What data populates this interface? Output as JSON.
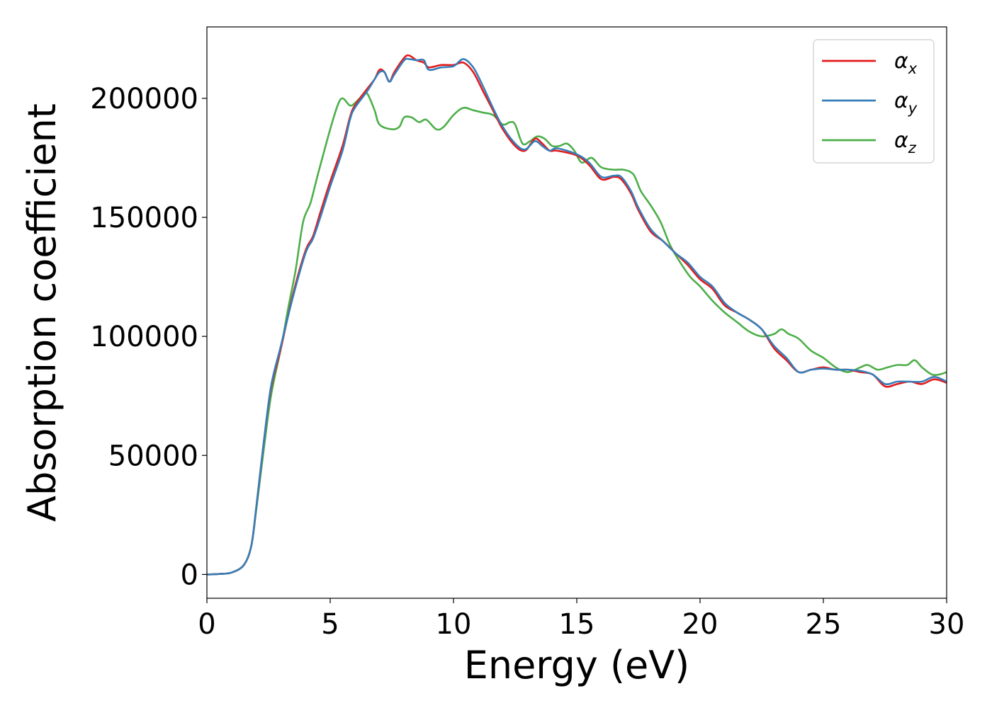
{
  "chart_data": {
    "type": "line",
    "title": "",
    "xlabel": "Energy (eV)",
    "ylabel": "Absorption coefficient",
    "xlim": [
      0,
      30
    ],
    "ylim": [
      -10000,
      230000
    ],
    "xticks": [
      0,
      5,
      10,
      15,
      20,
      25,
      30
    ],
    "yticks": [
      0,
      50000,
      100000,
      150000,
      200000
    ],
    "grid": false,
    "legend_position": "top-right",
    "series": [
      {
        "name": "αx",
        "legend_main": "α",
        "legend_sub": "x",
        "color": "#e41a1c",
        "points": [
          [
            0,
            0
          ],
          [
            0.5,
            200
          ],
          [
            1.0,
            800
          ],
          [
            1.5,
            4000
          ],
          [
            1.8,
            12000
          ],
          [
            2.0,
            28000
          ],
          [
            2.3,
            55000
          ],
          [
            2.6,
            78000
          ],
          [
            3.0,
            95000
          ],
          [
            3.5,
            118000
          ],
          [
            4.0,
            136000
          ],
          [
            4.3,
            142000
          ],
          [
            4.6,
            152000
          ],
          [
            5.0,
            165000
          ],
          [
            5.5,
            180000
          ],
          [
            5.8,
            192000
          ],
          [
            6.0,
            197000
          ],
          [
            6.5,
            204000
          ],
          [
            6.8,
            208000
          ],
          [
            7.0,
            212000
          ],
          [
            7.2,
            211000
          ],
          [
            7.4,
            207000
          ],
          [
            7.6,
            211000
          ],
          [
            8.0,
            217000
          ],
          [
            8.2,
            218000
          ],
          [
            8.5,
            216000
          ],
          [
            8.8,
            215000
          ],
          [
            9.0,
            213000
          ],
          [
            9.5,
            214000
          ],
          [
            10.0,
            214000
          ],
          [
            10.4,
            215000
          ],
          [
            10.8,
            211000
          ],
          [
            11.2,
            203000
          ],
          [
            11.6,
            195000
          ],
          [
            12.0,
            187000
          ],
          [
            12.5,
            180000
          ],
          [
            12.9,
            178000
          ],
          [
            13.3,
            183000
          ],
          [
            13.6,
            181000
          ],
          [
            13.9,
            178000
          ],
          [
            14.2,
            178000
          ],
          [
            15.0,
            176000
          ],
          [
            15.5,
            172000
          ],
          [
            16.0,
            166000
          ],
          [
            16.5,
            167000
          ],
          [
            16.8,
            166000
          ],
          [
            17.2,
            160000
          ],
          [
            17.5,
            153000
          ],
          [
            18.0,
            144000
          ],
          [
            18.5,
            140000
          ],
          [
            19.0,
            135000
          ],
          [
            19.5,
            130000
          ],
          [
            20.0,
            124000
          ],
          [
            20.5,
            120000
          ],
          [
            21.0,
            113000
          ],
          [
            21.5,
            110000
          ],
          [
            22.0,
            107000
          ],
          [
            22.5,
            103000
          ],
          [
            23.0,
            95000
          ],
          [
            23.5,
            90000
          ],
          [
            24.0,
            85000
          ],
          [
            24.5,
            86000
          ],
          [
            25.0,
            87000
          ],
          [
            25.5,
            86000
          ],
          [
            26.0,
            86000
          ],
          [
            26.5,
            85000
          ],
          [
            27.0,
            84000
          ],
          [
            27.5,
            79000
          ],
          [
            28.0,
            80000
          ],
          [
            28.5,
            81000
          ],
          [
            29.0,
            80000
          ],
          [
            29.5,
            82000
          ],
          [
            30.0,
            80500
          ]
        ]
      },
      {
        "name": "αy",
        "legend_main": "α",
        "legend_sub": "y",
        "color": "#377eb8",
        "points": [
          [
            0,
            0
          ],
          [
            0.5,
            200
          ],
          [
            1.0,
            800
          ],
          [
            1.5,
            4000
          ],
          [
            1.8,
            12000
          ],
          [
            2.0,
            28000
          ],
          [
            2.3,
            55000
          ],
          [
            2.6,
            79000
          ],
          [
            3.0,
            96000
          ],
          [
            3.5,
            117000
          ],
          [
            4.0,
            135000
          ],
          [
            4.3,
            141000
          ],
          [
            4.6,
            150000
          ],
          [
            5.0,
            163000
          ],
          [
            5.5,
            178000
          ],
          [
            5.8,
            191000
          ],
          [
            6.0,
            196000
          ],
          [
            6.5,
            203000
          ],
          [
            6.8,
            208000
          ],
          [
            7.0,
            211000
          ],
          [
            7.2,
            211000
          ],
          [
            7.4,
            207000
          ],
          [
            7.6,
            210000
          ],
          [
            8.0,
            216000
          ],
          [
            8.2,
            216500
          ],
          [
            8.5,
            216000
          ],
          [
            8.8,
            216000
          ],
          [
            9.0,
            212000
          ],
          [
            9.5,
            213000
          ],
          [
            10.0,
            213500
          ],
          [
            10.4,
            216500
          ],
          [
            10.8,
            213000
          ],
          [
            11.2,
            205000
          ],
          [
            11.6,
            196000
          ],
          [
            12.0,
            188000
          ],
          [
            12.5,
            181000
          ],
          [
            12.9,
            178500
          ],
          [
            13.3,
            182000
          ],
          [
            13.6,
            180000
          ],
          [
            13.9,
            178000
          ],
          [
            14.2,
            179000
          ],
          [
            15.0,
            176500
          ],
          [
            15.5,
            173000
          ],
          [
            16.0,
            167000
          ],
          [
            16.5,
            167500
          ],
          [
            16.8,
            167000
          ],
          [
            17.2,
            161000
          ],
          [
            17.5,
            154000
          ],
          [
            18.0,
            145000
          ],
          [
            18.5,
            140000
          ],
          [
            19.0,
            135000
          ],
          [
            19.5,
            131000
          ],
          [
            20.0,
            125000
          ],
          [
            20.5,
            121000
          ],
          [
            21.0,
            114000
          ],
          [
            21.5,
            110000
          ],
          [
            22.0,
            107000
          ],
          [
            22.5,
            103000
          ],
          [
            23.0,
            96000
          ],
          [
            23.5,
            91000
          ],
          [
            24.0,
            85000
          ],
          [
            24.5,
            86000
          ],
          [
            25.0,
            86500
          ],
          [
            25.5,
            86000
          ],
          [
            26.0,
            86000
          ],
          [
            26.5,
            85500
          ],
          [
            27.0,
            84000
          ],
          [
            27.5,
            80000
          ],
          [
            28.0,
            81000
          ],
          [
            28.5,
            81000
          ],
          [
            29.0,
            81000
          ],
          [
            29.5,
            83000
          ],
          [
            30.0,
            81000
          ]
        ]
      },
      {
        "name": "αz",
        "legend_main": "α",
        "legend_sub": "z",
        "color": "#4daf4a",
        "points": [
          [
            0,
            0
          ],
          [
            0.5,
            200
          ],
          [
            1.0,
            800
          ],
          [
            1.5,
            4000
          ],
          [
            1.8,
            12000
          ],
          [
            2.0,
            27000
          ],
          [
            2.3,
            52000
          ],
          [
            2.6,
            75000
          ],
          [
            3.0,
            95000
          ],
          [
            3.3,
            112000
          ],
          [
            3.6,
            128000
          ],
          [
            3.9,
            148000
          ],
          [
            4.2,
            156000
          ],
          [
            4.5,
            168000
          ],
          [
            5.0,
            187000
          ],
          [
            5.3,
            197000
          ],
          [
            5.5,
            200000
          ],
          [
            5.8,
            197000
          ],
          [
            6.0,
            198000
          ],
          [
            6.3,
            201000
          ],
          [
            6.5,
            202000
          ],
          [
            6.8,
            195000
          ],
          [
            7.0,
            189000
          ],
          [
            7.5,
            187000
          ],
          [
            7.8,
            188000
          ],
          [
            8.0,
            192000
          ],
          [
            8.3,
            192000
          ],
          [
            8.6,
            190000
          ],
          [
            8.9,
            191000
          ],
          [
            9.3,
            187000
          ],
          [
            9.6,
            188000
          ],
          [
            10.0,
            193000
          ],
          [
            10.4,
            196000
          ],
          [
            10.8,
            195000
          ],
          [
            11.2,
            194000
          ],
          [
            11.6,
            193000
          ],
          [
            12.0,
            189000
          ],
          [
            12.3,
            190000
          ],
          [
            12.5,
            189000
          ],
          [
            12.8,
            181000
          ],
          [
            13.1,
            182000
          ],
          [
            13.4,
            184000
          ],
          [
            13.7,
            183000
          ],
          [
            14.0,
            180000
          ],
          [
            14.3,
            180000
          ],
          [
            14.6,
            181000
          ],
          [
            14.9,
            178000
          ],
          [
            15.2,
            173000
          ],
          [
            15.6,
            175000
          ],
          [
            16.0,
            171000
          ],
          [
            16.5,
            170000
          ],
          [
            16.9,
            170000
          ],
          [
            17.3,
            168000
          ],
          [
            17.6,
            161000
          ],
          [
            18.0,
            155000
          ],
          [
            18.4,
            148000
          ],
          [
            18.8,
            138000
          ],
          [
            19.2,
            131000
          ],
          [
            19.6,
            125000
          ],
          [
            20.0,
            121000
          ],
          [
            20.5,
            115000
          ],
          [
            21.0,
            110000
          ],
          [
            21.5,
            106000
          ],
          [
            22.0,
            102000
          ],
          [
            22.5,
            100000
          ],
          [
            23.0,
            101000
          ],
          [
            23.3,
            103000
          ],
          [
            23.6,
            101000
          ],
          [
            24.0,
            99000
          ],
          [
            24.5,
            94000
          ],
          [
            25.0,
            91000
          ],
          [
            25.5,
            87000
          ],
          [
            26.0,
            85000
          ],
          [
            26.5,
            87000
          ],
          [
            26.8,
            88000
          ],
          [
            27.2,
            86000
          ],
          [
            27.6,
            87000
          ],
          [
            28.0,
            88000
          ],
          [
            28.4,
            88000
          ],
          [
            28.7,
            90000
          ],
          [
            29.0,
            87000
          ],
          [
            29.4,
            84000
          ],
          [
            29.7,
            84000
          ],
          [
            30.0,
            85000
          ]
        ]
      }
    ]
  }
}
